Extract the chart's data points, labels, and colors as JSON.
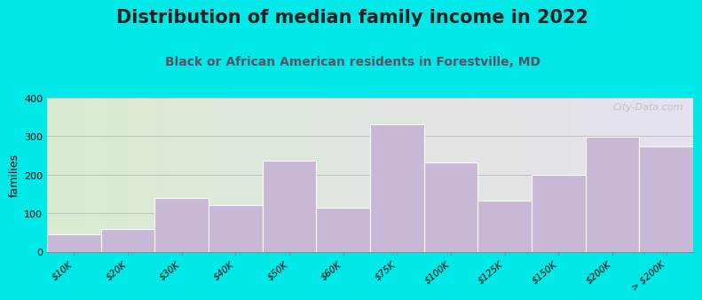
{
  "title": "Distribution of median family income in 2022",
  "subtitle": "Black or African American residents in Forestville, MD",
  "categories": [
    "$10K",
    "$20K",
    "$30K",
    "$40K",
    "$50K",
    "$60K",
    "$75K",
    "$100K",
    "$125K",
    "$150K",
    "$200K",
    "> $200K"
  ],
  "values": [
    45,
    60,
    140,
    120,
    235,
    113,
    330,
    232,
    133,
    200,
    297,
    272
  ],
  "bar_color": "#c8b8d8",
  "bar_edge_color": "#ffffff",
  "background_outer": "#00e8e8",
  "ylabel": "families",
  "ylim": [
    0,
    400
  ],
  "yticks": [
    0,
    100,
    200,
    300,
    400
  ],
  "watermark": "City-Data.com",
  "title_fontsize": 15,
  "subtitle_fontsize": 10,
  "subtitle_color": "#555566"
}
